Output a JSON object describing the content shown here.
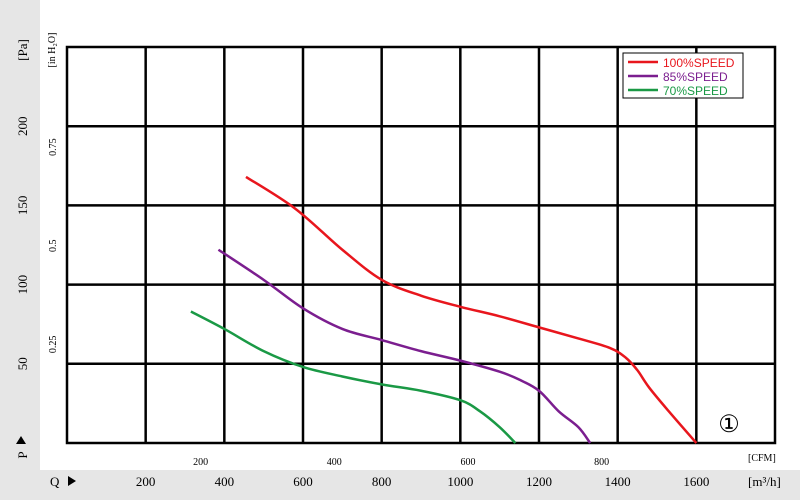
{
  "chart_data": {
    "type": "line",
    "title": "",
    "xlabel": "Q",
    "xunit": "[m³/h]",
    "xunit_secondary": "[CFM]",
    "ylabel": "P",
    "yunit": "[Pa]",
    "yunit_secondary": "[in H₂O]",
    "xlim": [
      0,
      1800
    ],
    "ylim": [
      0,
      250
    ],
    "grid": true,
    "legend_position": "top-right",
    "x_ticks": [
      "200",
      "400",
      "600",
      "800",
      "1000",
      "1200",
      "1400",
      "1600"
    ],
    "x_ticks_cfm": [
      "200",
      "400",
      "600",
      "800"
    ],
    "y_ticks": [
      "50",
      "100",
      "150",
      "200"
    ],
    "y_ticks_inh2o": [
      "0.25",
      "0.5",
      "0.75"
    ],
    "marker_label": "①",
    "series": [
      {
        "name": "100%SPEED",
        "color": "#e8161d",
        "points": [
          [
            455,
            168
          ],
          [
            580,
            148
          ],
          [
            700,
            122
          ],
          [
            800,
            103
          ],
          [
            900,
            93
          ],
          [
            1000,
            86
          ],
          [
            1100,
            80
          ],
          [
            1200,
            73
          ],
          [
            1300,
            66
          ],
          [
            1380,
            60
          ],
          [
            1420,
            54
          ],
          [
            1450,
            46
          ],
          [
            1480,
            35
          ],
          [
            1530,
            20
          ],
          [
            1600,
            0
          ]
        ]
      },
      {
        "name": "85%SPEED",
        "color": "#7b1e8f",
        "points": [
          [
            385,
            122
          ],
          [
            500,
            103
          ],
          [
            600,
            85
          ],
          [
            700,
            72
          ],
          [
            800,
            65
          ],
          [
            900,
            58
          ],
          [
            1000,
            52
          ],
          [
            1100,
            45
          ],
          [
            1150,
            40
          ],
          [
            1200,
            33
          ],
          [
            1250,
            20
          ],
          [
            1300,
            10
          ],
          [
            1330,
            0
          ]
        ]
      },
      {
        "name": "70%SPEED",
        "color": "#1a9945",
        "points": [
          [
            315,
            83
          ],
          [
            400,
            72
          ],
          [
            500,
            58
          ],
          [
            600,
            48
          ],
          [
            700,
            42
          ],
          [
            800,
            37
          ],
          [
            900,
            33
          ],
          [
            1000,
            27
          ],
          [
            1050,
            20
          ],
          [
            1100,
            10
          ],
          [
            1140,
            0
          ]
        ]
      }
    ]
  }
}
